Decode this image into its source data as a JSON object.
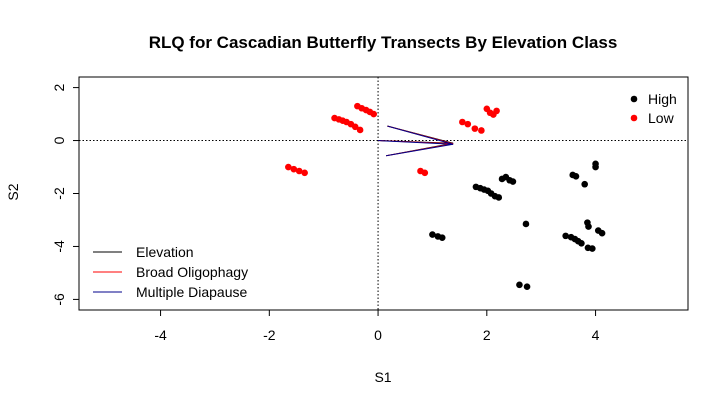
{
  "chart_data": {
    "type": "scatter",
    "title": "RLQ for Cascadian Butterfly Transects By Elevation Class",
    "xlabel": "S1",
    "ylabel": "S2",
    "xlim": [
      -5.5,
      5.7
    ],
    "ylim": [
      -6.4,
      2.4
    ],
    "x_ticks": [
      -4,
      -2,
      0,
      2,
      4
    ],
    "y_ticks": [
      -6,
      -4,
      -2,
      0,
      2
    ],
    "x_tick_labels": [
      "-4",
      "-2",
      "0",
      "2",
      "4"
    ],
    "y_tick_labels": [
      "-6",
      "-4",
      "-2",
      "0",
      "2"
    ],
    "reference_lines": {
      "x": 0,
      "y": 0,
      "style": "dotted"
    },
    "grid": false,
    "series": [
      {
        "name": "High",
        "color": "#000000",
        "points": [
          [
            1.0,
            -3.55
          ],
          [
            1.1,
            -3.62
          ],
          [
            1.18,
            -3.67
          ],
          [
            1.8,
            -1.75
          ],
          [
            1.88,
            -1.8
          ],
          [
            1.95,
            -1.85
          ],
          [
            2.02,
            -1.9
          ],
          [
            2.08,
            -2.0
          ],
          [
            2.15,
            -2.1
          ],
          [
            2.22,
            -2.15
          ],
          [
            2.28,
            -1.45
          ],
          [
            2.35,
            -1.38
          ],
          [
            2.42,
            -1.5
          ],
          [
            2.48,
            -1.55
          ],
          [
            2.72,
            -3.15
          ],
          [
            2.6,
            -5.45
          ],
          [
            2.74,
            -5.52
          ],
          [
            3.45,
            -3.6
          ],
          [
            3.55,
            -3.65
          ],
          [
            3.62,
            -3.72
          ],
          [
            3.68,
            -3.8
          ],
          [
            3.74,
            -3.88
          ],
          [
            3.58,
            -1.3
          ],
          [
            3.64,
            -1.35
          ],
          [
            3.8,
            -1.65
          ],
          [
            3.85,
            -3.1
          ],
          [
            3.87,
            -3.25
          ],
          [
            3.86,
            -4.05
          ],
          [
            3.94,
            -4.08
          ],
          [
            4.0,
            -0.88
          ],
          [
            4.0,
            -1.0
          ],
          [
            4.05,
            -3.4
          ],
          [
            4.12,
            -3.5
          ]
        ]
      },
      {
        "name": "Low",
        "color": "#ff0000",
        "points": [
          [
            -1.65,
            -1.0
          ],
          [
            -1.55,
            -1.08
          ],
          [
            -1.45,
            -1.15
          ],
          [
            -1.35,
            -1.22
          ],
          [
            -0.8,
            0.85
          ],
          [
            -0.72,
            0.8
          ],
          [
            -0.65,
            0.75
          ],
          [
            -0.58,
            0.7
          ],
          [
            -0.5,
            0.62
          ],
          [
            -0.42,
            0.52
          ],
          [
            -0.33,
            0.4
          ],
          [
            -0.38,
            1.3
          ],
          [
            -0.3,
            1.22
          ],
          [
            -0.22,
            1.15
          ],
          [
            -0.15,
            1.08
          ],
          [
            -0.08,
            1.0
          ],
          [
            0.78,
            -1.15
          ],
          [
            0.86,
            -1.22
          ],
          [
            1.55,
            0.7
          ],
          [
            1.65,
            0.62
          ],
          [
            1.78,
            0.45
          ],
          [
            1.9,
            0.38
          ],
          [
            2.0,
            1.2
          ],
          [
            2.06,
            1.05
          ],
          [
            2.12,
            0.98
          ],
          [
            2.18,
            1.12
          ]
        ]
      }
    ],
    "arrows": [
      {
        "name": "Elevation",
        "color": "#000000",
        "x": [
          0.0,
          1.38
        ],
        "y": [
          0.0,
          -0.1
        ]
      },
      {
        "name": "Broad Oligophagy",
        "color": "#ff0000",
        "x": [
          0.0,
          1.38
        ],
        "y": [
          0.0,
          -0.12
        ]
      },
      {
        "name": "Multiple Diapause",
        "color": "#00008b",
        "x": [
          0.0,
          1.38
        ],
        "y": [
          0.0,
          -0.14
        ]
      }
    ],
    "legend_points": {
      "placement": "top-right",
      "entries": [
        "High",
        "Low"
      ]
    },
    "legend_lines": {
      "placement": "bottom-left",
      "entries": [
        "Elevation",
        "Broad Oligophagy",
        "Multiple Diapause"
      ]
    }
  }
}
